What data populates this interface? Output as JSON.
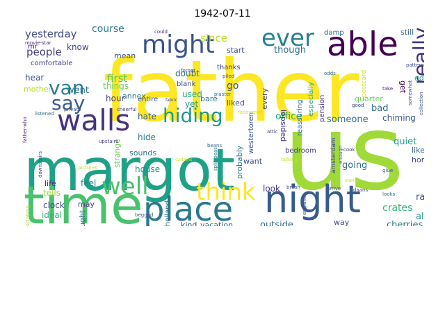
{
  "title": "1942-07-11",
  "words": [
    {
      "text": "father",
      "color": "#fde725"
    },
    {
      "text": "us",
      "color": "#a0da39"
    },
    {
      "text": "margot",
      "color": "#1fa187"
    },
    {
      "text": "time",
      "color": "#4ac16d"
    },
    {
      "text": "place",
      "color": "#2a788e"
    },
    {
      "text": "night",
      "color": "#365c8d"
    },
    {
      "text": "walls",
      "color": "#46327e"
    },
    {
      "text": "able",
      "color": "#440154"
    },
    {
      "text": "might",
      "color": "#3b528b"
    },
    {
      "text": "ever",
      "color": "#26828e"
    },
    {
      "text": "hiding",
      "color": "#1f988b"
    },
    {
      "text": "think",
      "color": "#fde725"
    },
    {
      "text": "well",
      "color": "#4ac16d"
    },
    {
      "text": "van",
      "color": "#277f8e"
    },
    {
      "text": "say",
      "color": "#365c8d"
    },
    {
      "text": "really",
      "color": "#46327e"
    },
    {
      "text": "yesterday",
      "color": "#3e4a89"
    },
    {
      "text": "course",
      "color": "#2a788e"
    },
    {
      "text": "people",
      "color": "#433e85"
    },
    {
      "text": "since",
      "color": "#b5de2b"
    },
    {
      "text": "though",
      "color": "#2d708e"
    },
    {
      "text": "first",
      "color": "#52c569"
    },
    {
      "text": "mean",
      "color": "#3b528b"
    },
    {
      "text": "went",
      "color": "#2e6e8e"
    },
    {
      "text": "know",
      "color": "#3e4a89"
    },
    {
      "text": "mr",
      "color": "#482374"
    },
    {
      "text": "comfortable",
      "color": "#433e85"
    },
    {
      "text": "hear",
      "color": "#3b528b"
    },
    {
      "text": "mother",
      "color": "#b5de2b"
    },
    {
      "text": "things",
      "color": "#6ece58"
    },
    {
      "text": "hour",
      "color": "#433e85"
    },
    {
      "text": "annex",
      "color": "#2a788e"
    },
    {
      "text": "hate",
      "color": "#355f8d"
    },
    {
      "text": "entire",
      "color": "#3b528b"
    },
    {
      "text": "hide",
      "color": "#277f8e"
    },
    {
      "text": "house",
      "color": "#1f988b"
    },
    {
      "text": "sounds",
      "color": "#2c728e"
    },
    {
      "text": "strange",
      "color": "#6ece58"
    },
    {
      "text": "yet",
      "color": "#1f9e89"
    },
    {
      "text": "used",
      "color": "#25ac82"
    },
    {
      "text": "doubt",
      "color": "#2e6e8e"
    },
    {
      "text": "blank",
      "color": "#3e4a89"
    },
    {
      "text": "bare",
      "color": "#2a788e"
    },
    {
      "text": "go",
      "color": "#3b528b"
    },
    {
      "text": "start",
      "color": "#3e4a89"
    },
    {
      "text": "thanks",
      "color": "#433e85"
    },
    {
      "text": "liked",
      "color": "#3b528b"
    },
    {
      "text": "office",
      "color": "#25ac82"
    },
    {
      "text": "someone",
      "color": "#2d708e"
    },
    {
      "text": "every",
      "color": "#433e85"
    },
    {
      "text": "lopsided",
      "color": "#46327e"
    },
    {
      "text": "westertoren",
      "color": "#3b528b"
    },
    {
      "text": "probably",
      "color": "#2a788e"
    },
    {
      "text": "want",
      "color": "#3b528b"
    },
    {
      "text": "going",
      "color": "#2e6e8e"
    },
    {
      "text": "quiet",
      "color": "#1f9e89"
    },
    {
      "text": "like",
      "color": "#31688e"
    },
    {
      "text": "home",
      "color": "#3e4a89"
    },
    {
      "text": "bad",
      "color": "#2e6e8e"
    },
    {
      "text": "chiming",
      "color": "#3b528b"
    },
    {
      "text": "quarter",
      "color": "#6ece58"
    },
    {
      "text": "odd",
      "color": "#25ac82"
    },
    {
      "text": "get",
      "color": "#440154"
    },
    {
      "text": "radio",
      "color": "#3b528b"
    },
    {
      "text": "crates",
      "color": "#35b779"
    },
    {
      "text": "also",
      "color": "#1f988b"
    },
    {
      "text": "cherries",
      "color": "#2a788e"
    },
    {
      "text": "outside",
      "color": "#31688e"
    },
    {
      "text": "vacation",
      "color": "#2e6e8e"
    },
    {
      "text": "kind",
      "color": "#3b528b"
    },
    {
      "text": "clock",
      "color": "#3e4a89"
    },
    {
      "text": "ideal",
      "color": "#35b779"
    },
    {
      "text": "life",
      "color": "#482878"
    },
    {
      "text": "feel",
      "color": "#26828e"
    },
    {
      "text": "tells",
      "color": "#9fda3a"
    },
    {
      "text": "may",
      "color": "#433e85"
    },
    {
      "text": "brought",
      "color": "#2e6e8e"
    },
    {
      "text": "look",
      "color": "#46327e"
    },
    {
      "text": "way",
      "color": "#3e4a89"
    },
    {
      "text": "still",
      "color": "#31688e"
    },
    {
      "text": "damp",
      "color": "#2e6e8e"
    },
    {
      "text": "especially",
      "color": "#22a884"
    },
    {
      "text": "pension",
      "color": "#46327e"
    },
    {
      "text": "reassuring",
      "color": "#2d708e"
    },
    {
      "text": "bedroom",
      "color": "#433e85"
    },
    {
      "text": "amsterdam",
      "color": "#3e4a89"
    },
    {
      "text": "postcard",
      "color": "#cae11f"
    },
    {
      "text": "holland",
      "color": "#2a788e"
    },
    {
      "text": "could",
      "color": "#482374"
    },
    {
      "text": "piled",
      "color": "#3b528b"
    },
    {
      "text": "plaster",
      "color": "#2e6e8e"
    },
    {
      "text": "forgot",
      "color": "#433e85"
    },
    {
      "text": "attic",
      "color": "#3e4a89"
    },
    {
      "text": "beans",
      "color": "#2e6e8e"
    },
    {
      "text": "brush",
      "color": "#3b528b"
    },
    {
      "text": "arrive",
      "color": "#433e85"
    },
    {
      "text": "daans",
      "color": "#3e4a89"
    },
    {
      "text": "movie-star",
      "color": "#482374"
    },
    {
      "text": "father-who",
      "color": "#482374"
    },
    {
      "text": "listened",
      "color": "#2e6e8e"
    },
    {
      "text": "cheerful",
      "color": "#433e85"
    },
    {
      "text": "begged",
      "color": "#3b528b"
    },
    {
      "text": "split-peas",
      "color": "#2a788e"
    },
    {
      "text": "england",
      "color": "#3e4a89"
    },
    {
      "text": "collection",
      "color": "#3b528b"
    },
    {
      "text": "good",
      "color": "#3e4a89"
    },
    {
      "text": "cook",
      "color": "#433e85"
    },
    {
      "text": "looks",
      "color": "#2e6e8e"
    },
    {
      "text": "glue",
      "color": "#3b528b"
    },
    {
      "text": "take",
      "color": "#482374"
    },
    {
      "text": "odds",
      "color": "#2e6e8e"
    },
    {
      "text": "recovered",
      "color": "#cae11f"
    },
    {
      "text": "talking",
      "color": "#cae11f"
    },
    {
      "text": "scraping",
      "color": "#9fda3a"
    },
    {
      "text": "downstairs",
      "color": "#433e85"
    },
    {
      "text": "private",
      "color": "#3b528b"
    },
    {
      "text": "pictures",
      "color": "#b5de2b"
    },
    {
      "text": "curtains",
      "color": "#cae11f"
    },
    {
      "text": "starred",
      "color": "#cae11f"
    },
    {
      "text": "fabric",
      "color": "#433e85"
    },
    {
      "text": "enough",
      "color": "#2e6e8e"
    },
    {
      "text": "upstairs",
      "color": "#433e85"
    },
    {
      "text": "somewhat",
      "color": "#3b528b"
    },
    {
      "text": "pattern",
      "color": "#3e4a89"
    }
  ]
}
